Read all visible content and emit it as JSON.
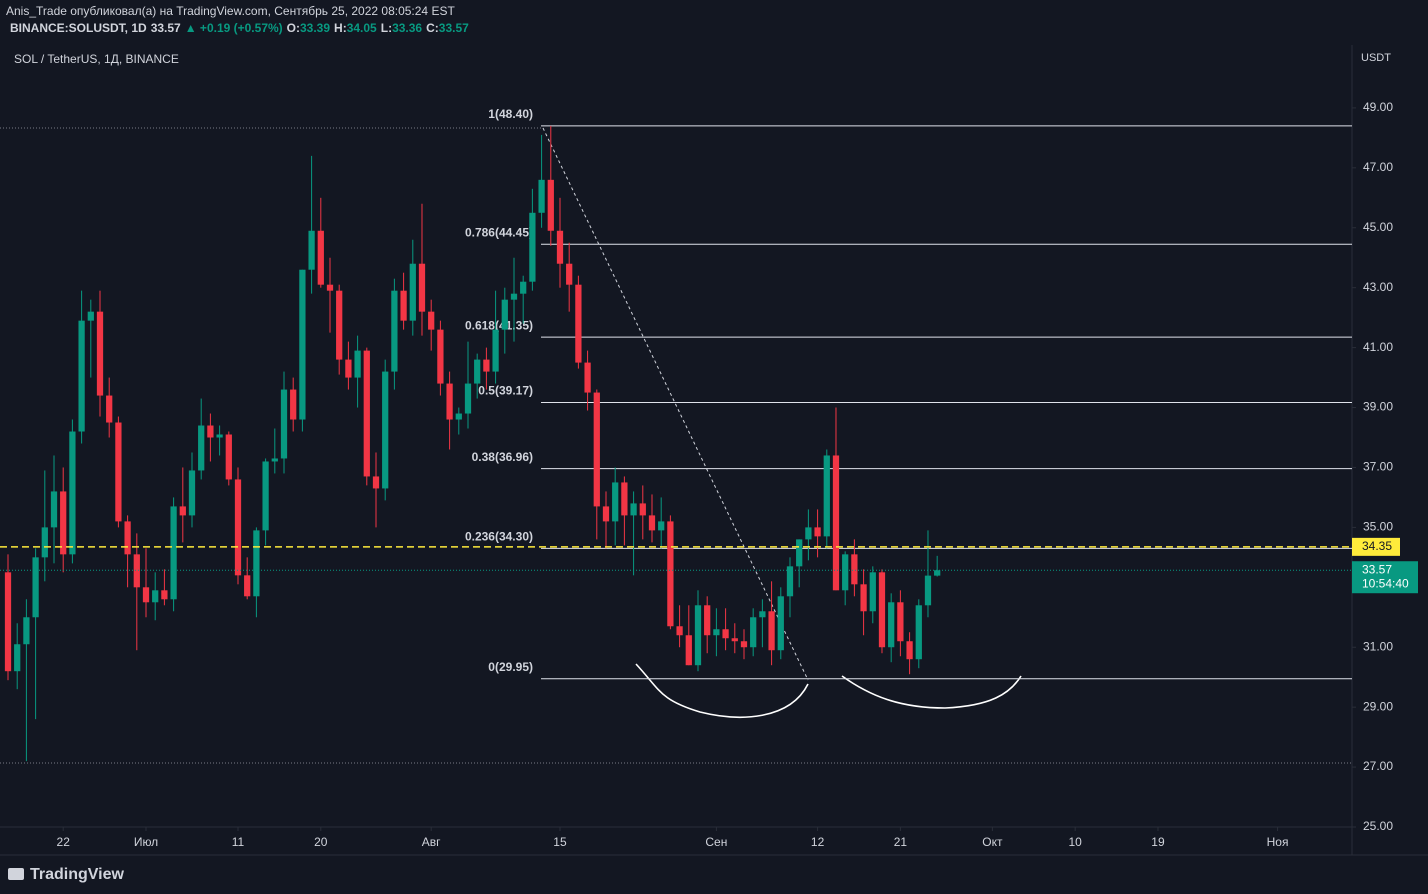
{
  "header": {
    "line1": "Anis_Trade опубликовал(а) на TradingView.com, Сентябрь 25, 2022 08:05:24 EST",
    "symbol": "BINANCE:SOLUSDT, 1D",
    "price": "33.57",
    "change": "▲ +0.19 (+0.57%)",
    "ohlc": [
      {
        "key": "O:",
        "value": "33.39"
      },
      {
        "key": "H:",
        "value": "34.05"
      },
      {
        "key": "L:",
        "value": "33.36"
      },
      {
        "key": "C:",
        "value": "33.57"
      }
    ]
  },
  "footer": {
    "logo": "TradingView"
  },
  "chart_data": {
    "type": "candlestick",
    "title": "SOL / TetherUS, 1Д, BINANCE",
    "y_unit": "USDT",
    "up_color": "#089981",
    "down_color": "#f23645",
    "x": [
      0,
      1,
      2,
      3,
      4,
      5,
      6,
      7,
      8,
      9,
      10,
      11,
      12,
      13,
      14,
      15,
      16,
      17,
      18,
      19,
      20,
      21,
      22,
      23,
      24,
      25,
      26,
      27,
      28,
      29,
      30,
      31,
      32,
      33,
      34,
      35,
      36,
      37,
      38,
      39,
      40,
      41,
      42,
      43,
      44,
      45,
      46,
      47,
      48,
      49,
      50,
      51,
      52,
      53,
      54,
      55,
      56,
      57,
      58,
      59,
      60,
      61,
      62,
      63,
      64,
      65,
      66,
      67,
      68,
      69,
      70,
      71,
      72,
      73,
      74,
      75,
      76,
      77,
      78,
      79,
      80,
      81,
      82,
      83,
      84,
      85,
      86,
      87,
      88,
      89,
      90,
      91,
      92,
      93,
      94,
      95,
      96,
      97,
      98,
      99,
      100,
      101
    ],
    "open": [
      33.5,
      30.2,
      31.1,
      32.0,
      34.0,
      35.0,
      36.2,
      34.1,
      38.2,
      41.9,
      42.2,
      39.4,
      38.5,
      35.2,
      34.1,
      33.0,
      32.5,
      32.9,
      32.6,
      35.7,
      35.4,
      36.9,
      38.4,
      38.0,
      38.1,
      36.6,
      33.4,
      32.7,
      34.9,
      37.2,
      37.3,
      39.6,
      38.6,
      43.6,
      44.9,
      43.1,
      42.9,
      40.6,
      40.0,
      40.9,
      36.7,
      36.3,
      40.2,
      42.9,
      41.9,
      43.8,
      42.2,
      41.6,
      39.8,
      38.6,
      38.8,
      39.8,
      40.6,
      40.2,
      41.6,
      42.6,
      42.8,
      43.2,
      45.5,
      46.6,
      44.9,
      43.8,
      43.1,
      40.5,
      39.5,
      35.7,
      35.2,
      36.5,
      35.4,
      35.8,
      35.4,
      34.9,
      35.2,
      31.7,
      31.4,
      30.4,
      32.4,
      31.4,
      31.6,
      31.3,
      31.2,
      31.0,
      32.0,
      32.2,
      30.9,
      32.7,
      33.7,
      34.6,
      35.0,
      34.7,
      37.4,
      32.9,
      34.1,
      33.1,
      32.2,
      33.5,
      31.0,
      32.5,
      31.2,
      30.6,
      32.4,
      33.39
    ],
    "high": [
      34.1,
      31.8,
      32.6,
      34.3,
      36.9,
      37.4,
      37.0,
      38.6,
      42.9,
      42.6,
      42.9,
      40.0,
      38.7,
      35.4,
      34.8,
      34.3,
      33.5,
      33.6,
      36.0,
      37.0,
      37.5,
      39.3,
      38.8,
      38.4,
      38.2,
      37.0,
      34.0,
      35.0,
      37.3,
      38.3,
      40.2,
      40.0,
      43.6,
      47.4,
      46.0,
      44.0,
      43.1,
      41.2,
      41.4,
      41.0,
      37.5,
      40.6,
      43.3,
      43.5,
      44.6,
      45.8,
      42.6,
      41.9,
      40.2,
      39.0,
      41.2,
      40.8,
      41.0,
      42.9,
      43.0,
      44.0,
      43.4,
      46.3,
      48.1,
      48.4,
      46.0,
      44.5,
      43.4,
      40.9,
      39.6,
      36.2,
      37.0,
      36.7,
      36.2,
      36.4,
      36.1,
      36.0,
      35.4,
      32.4,
      32.4,
      32.9,
      32.7,
      32.3,
      32.3,
      31.8,
      31.6,
      32.3,
      32.6,
      33.2,
      33.0,
      34.0,
      34.6,
      35.6,
      35.6,
      37.6,
      39.0,
      34.2,
      34.6,
      33.6,
      33.7,
      33.6,
      32.8,
      32.9,
      31.5,
      32.6,
      34.9,
      34.05
    ],
    "low": [
      29.9,
      29.6,
      27.2,
      28.6,
      33.2,
      33.8,
      33.5,
      33.8,
      37.8,
      40.0,
      38.7,
      38.0,
      35.0,
      33.0,
      30.9,
      32.0,
      31.9,
      32.4,
      32.2,
      34.5,
      35.0,
      36.6,
      37.2,
      37.4,
      36.4,
      33.1,
      32.6,
      32.0,
      34.4,
      36.8,
      36.8,
      38.2,
      38.2,
      42.8,
      43.0,
      41.5,
      40.1,
      39.6,
      39.0,
      36.4,
      35.0,
      35.9,
      39.6,
      41.6,
      41.4,
      41.4,
      40.9,
      39.4,
      37.6,
      38.1,
      38.3,
      39.3,
      39.6,
      39.8,
      40.8,
      41.2,
      41.8,
      42.9,
      45.0,
      44.4,
      43.0,
      42.2,
      40.3,
      38.9,
      34.6,
      34.3,
      34.4,
      34.4,
      33.4,
      34.6,
      34.5,
      34.3,
      31.6,
      31.0,
      30.4,
      30.2,
      30.8,
      30.7,
      30.9,
      30.8,
      30.6,
      30.7,
      31.0,
      30.4,
      30.6,
      32.0,
      33.0,
      33.9,
      34.0,
      34.3,
      32.9,
      32.4,
      32.7,
      31.4,
      31.8,
      30.8,
      30.5,
      30.7,
      30.1,
      30.3,
      32.0,
      33.36
    ],
    "close": [
      30.2,
      31.1,
      32.0,
      34.0,
      35.0,
      36.2,
      34.1,
      38.2,
      41.9,
      42.2,
      39.4,
      38.5,
      35.2,
      34.1,
      33.0,
      32.5,
      32.9,
      32.6,
      35.7,
      35.4,
      36.9,
      38.4,
      38.0,
      38.1,
      36.6,
      33.4,
      32.7,
      34.9,
      37.2,
      37.3,
      39.6,
      38.6,
      43.6,
      44.9,
      43.1,
      42.9,
      40.6,
      40.0,
      40.9,
      36.7,
      36.3,
      40.2,
      42.9,
      41.9,
      43.8,
      42.2,
      41.6,
      39.8,
      38.6,
      38.8,
      39.8,
      40.6,
      40.2,
      41.6,
      42.6,
      42.8,
      43.2,
      45.5,
      46.6,
      44.9,
      43.8,
      43.1,
      40.5,
      39.5,
      35.7,
      35.2,
      36.5,
      35.4,
      35.8,
      35.4,
      34.9,
      35.2,
      31.7,
      31.4,
      30.4,
      32.4,
      31.4,
      31.6,
      31.3,
      31.2,
      31.0,
      32.0,
      32.2,
      30.9,
      32.7,
      33.7,
      34.6,
      35.0,
      34.7,
      37.4,
      32.9,
      34.1,
      33.1,
      32.2,
      33.5,
      31.0,
      32.5,
      31.2,
      30.6,
      32.4,
      33.39,
      33.57
    ],
    "xlim": [
      -0.87,
      146.09
    ],
    "xticks": [
      {
        "value": 6,
        "label": "22"
      },
      {
        "value": 15,
        "label": "Июл"
      },
      {
        "value": 25,
        "label": "11"
      },
      {
        "value": 34,
        "label": "20"
      },
      {
        "value": 46,
        "label": "Авг"
      },
      {
        "value": 60,
        "label": "15"
      },
      {
        "value": 77,
        "label": "Сен"
      },
      {
        "value": 88,
        "label": "12"
      },
      {
        "value": 97,
        "label": "21"
      },
      {
        "value": 107,
        "label": "Окт"
      },
      {
        "value": 116,
        "label": "10"
      },
      {
        "value": 125,
        "label": "19"
      },
      {
        "value": 138,
        "label": "Ноя"
      }
    ],
    "ylim": [
      25,
      51.1
    ],
    "yticks": [
      {
        "value": 25,
        "label": "25.00"
      },
      {
        "value": 27,
        "label": "27.00"
      },
      {
        "value": 29,
        "label": "29.00"
      },
      {
        "value": 31,
        "label": "31.00"
      },
      {
        "value": 33,
        "label": "33.00"
      },
      {
        "value": 35,
        "label": "35.00"
      },
      {
        "value": 37,
        "label": "37.00"
      },
      {
        "value": 39,
        "label": "39.00"
      },
      {
        "value": 41,
        "label": "41.00"
      },
      {
        "value": 43,
        "label": "43.00"
      },
      {
        "value": 45,
        "label": "45.00"
      },
      {
        "value": 47,
        "label": "47.00"
      },
      {
        "value": 49,
        "label": "49.00"
      }
    ],
    "fib_levels": [
      {
        "label": "1(48.40)",
        "value": 48.4
      },
      {
        "label": "0.786(44.45)",
        "value": 44.45
      },
      {
        "label": "0.618(41.35)",
        "value": 41.35
      },
      {
        "label": "0.5(39.17)",
        "value": 39.17
      },
      {
        "label": "0.38(36.96)",
        "value": 36.96
      },
      {
        "label": "0.236(34.30)",
        "value": 34.3
      },
      {
        "label": "0(29.95)",
        "value": 29.95
      }
    ],
    "alert_line": 34.35,
    "last_price": 33.57,
    "countdown": "10:54:40"
  }
}
